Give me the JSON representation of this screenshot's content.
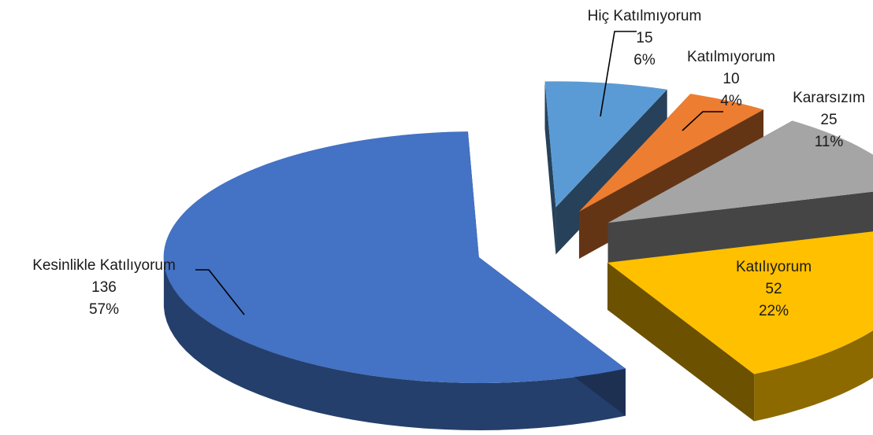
{
  "chart_data": {
    "type": "pie",
    "style": "3d-exploded",
    "title": "",
    "legend": "none",
    "slices": [
      {
        "name": "Hiç Katılmıyorum",
        "value": 15,
        "percent": "6%",
        "color": "#5B9BD5"
      },
      {
        "name": "Katılmıyorum",
        "value": 10,
        "percent": "4%",
        "color": "#ED7D31"
      },
      {
        "name": "Kararsızım",
        "value": 25,
        "percent": "11%",
        "color": "#A5A5A5"
      },
      {
        "name": "Katılıyorum",
        "value": 52,
        "percent": "22%",
        "color": "#FFC000"
      },
      {
        "name": "Kesinlikle Katılıyorum",
        "value": 136,
        "percent": "57%",
        "color": "#4472C4"
      }
    ]
  }
}
